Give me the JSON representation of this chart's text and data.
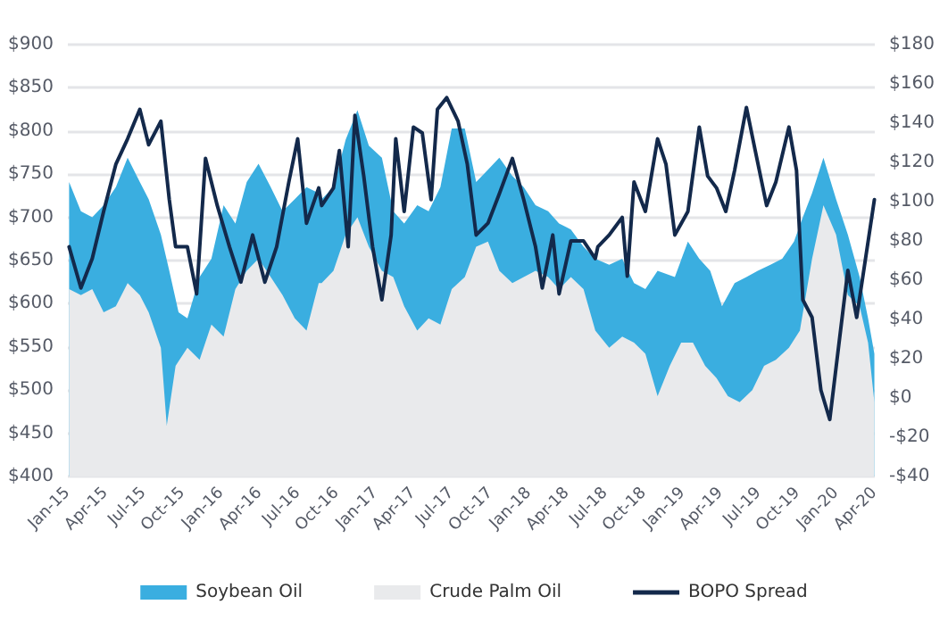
{
  "chart_data": {
    "type": "area",
    "xlim": [
      "2015-01",
      "2020-04"
    ],
    "xticks": [
      {
        "value": "2015-01",
        "label": "Jan-15"
      },
      {
        "value": "2015-04",
        "label": "Apr-15"
      },
      {
        "value": "2015-07",
        "label": "Jul-15"
      },
      {
        "value": "2015-10",
        "label": "Oct-15"
      },
      {
        "value": "2016-01",
        "label": "Jan-16"
      },
      {
        "value": "2016-04",
        "label": "Apr-16"
      },
      {
        "value": "2016-07",
        "label": "Jul-16"
      },
      {
        "value": "2016-10",
        "label": "Oct-16"
      },
      {
        "value": "2017-01",
        "label": "Jan-17"
      },
      {
        "value": "2017-04",
        "label": "Apr-17"
      },
      {
        "value": "2017-07",
        "label": "Jul-17"
      },
      {
        "value": "2017-10",
        "label": "Oct-17"
      },
      {
        "value": "2018-01",
        "label": "Jan-18"
      },
      {
        "value": "2018-04",
        "label": "Apr-18"
      },
      {
        "value": "2018-07",
        "label": "Jul-18"
      },
      {
        "value": "2018-10",
        "label": "Oct-18"
      },
      {
        "value": "2019-01",
        "label": "Jan-19"
      },
      {
        "value": "2019-04",
        "label": "Apr-19"
      },
      {
        "value": "2019-07",
        "label": "Jul-19"
      },
      {
        "value": "2019-10",
        "label": "Oct-19"
      },
      {
        "value": "2020-01",
        "label": "Jan-20"
      },
      {
        "value": "2020-04",
        "label": "Apr-20"
      }
    ],
    "ylim": [
      400,
      900
    ],
    "yticks": [
      {
        "value": 400,
        "label": "$400"
      },
      {
        "value": 450,
        "label": "$450"
      },
      {
        "value": 500,
        "label": "$500"
      },
      {
        "value": 550,
        "label": "$550"
      },
      {
        "value": 600,
        "label": "$600"
      },
      {
        "value": 650,
        "label": "$650"
      },
      {
        "value": 700,
        "label": "$700"
      },
      {
        "value": 750,
        "label": "$750"
      },
      {
        "value": 800,
        "label": "$800"
      },
      {
        "value": 850,
        "label": "$850"
      },
      {
        "value": 900,
        "label": "$900"
      }
    ],
    "y2lim": [
      -40,
      180
    ],
    "y2ticks": [
      {
        "value": -40,
        "label": "-$40"
      },
      {
        "value": -20,
        "label": "-$20"
      },
      {
        "value": 0,
        "label": "$0"
      },
      {
        "value": 20,
        "label": "$20"
      },
      {
        "value": 40,
        "label": "$40"
      },
      {
        "value": 60,
        "label": "$60"
      },
      {
        "value": 80,
        "label": "$80"
      },
      {
        "value": 100,
        "label": "$100"
      },
      {
        "value": 120,
        "label": "$120"
      },
      {
        "value": 140,
        "label": "$140"
      },
      {
        "value": 160,
        "label": "$160"
      },
      {
        "value": 180,
        "label": "$180"
      }
    ],
    "grid": "y",
    "legend": "bottom",
    "marker": "none",
    "series": [
      {
        "name": "Soybean Oil",
        "color": "#3aaee0",
        "x": [
          "2015-01-04",
          "2015-02-01",
          "2015-02-28",
          "2015-03-27",
          "2015-04-25",
          "2015-05-23",
          "2015-06-21",
          "2015-07-12",
          "2015-08-10",
          "2015-08-30",
          "2015-09-21",
          "2015-10-12",
          "2015-11-10",
          "2015-12-08",
          "2016-01-06",
          "2016-02-03",
          "2016-03-01",
          "2016-03-29",
          "2016-04-27",
          "2016-05-25",
          "2016-06-23",
          "2016-07-21",
          "2016-08-19",
          "2016-08-26",
          "2016-09-23",
          "2016-10-22",
          "2016-11-19",
          "2016-12-16",
          "2017-01-16",
          "2017-02-12",
          "2017-03-10",
          "2017-04-10",
          "2017-05-07",
          "2017-06-04",
          "2017-07-01",
          "2017-08-01",
          "2017-08-28",
          "2017-09-25",
          "2017-10-22",
          "2017-11-22",
          "2017-12-19",
          "2018-01-16",
          "2018-02-15",
          "2018-03-13",
          "2018-04-10",
          "2018-05-10",
          "2018-06-07",
          "2018-07-10",
          "2018-08-10",
          "2018-09-07",
          "2018-10-04",
          "2018-11-02",
          "2018-12-13",
          "2019-01-13",
          "2019-02-09",
          "2019-03-07",
          "2019-04-04",
          "2019-05-04",
          "2019-06-01",
          "2019-06-28",
          "2019-07-28",
          "2019-08-25",
          "2019-09-22",
          "2019-10-13",
          "2019-11-04",
          "2019-12-01",
          "2019-12-31",
          "2020-01-28",
          "2020-02-25",
          "2020-03-16",
          "2020-03-31"
        ],
        "values": [
          741,
          707,
          700,
          714,
          735,
          769,
          741,
          721,
          680,
          638,
          590,
          583,
          631,
          652,
          714,
          693,
          741,
          762,
          735,
          707,
          721,
          735,
          728,
          721,
          735,
          790,
          824,
          783,
          769,
          707,
          693,
          714,
          707,
          735,
          803,
          803,
          741,
          755,
          769,
          748,
          735,
          714,
          707,
          693,
          686,
          666,
          652,
          645,
          652,
          624,
          617,
          638,
          631,
          672,
          652,
          638,
          597,
          624,
          631,
          638,
          645,
          652,
          672,
          700,
          728,
          769,
          721,
          680,
          631,
          583,
          542
        ]
      },
      {
        "name": "Crude Palm Oil",
        "color": "#e9eaec",
        "x": [
          "2015-01-04",
          "2015-02-01",
          "2015-02-28",
          "2015-03-27",
          "2015-04-25",
          "2015-05-23",
          "2015-06-21",
          "2015-07-12",
          "2015-08-10",
          "2015-08-24",
          "2015-09-14",
          "2015-10-12",
          "2015-11-10",
          "2015-12-08",
          "2016-01-06",
          "2016-02-03",
          "2016-03-01",
          "2016-03-29",
          "2016-04-27",
          "2016-05-25",
          "2016-06-23",
          "2016-07-21",
          "2016-08-19",
          "2016-08-26",
          "2016-09-23",
          "2016-10-22",
          "2016-11-19",
          "2016-12-16",
          "2017-01-16",
          "2017-02-12",
          "2017-03-10",
          "2017-04-10",
          "2017-05-07",
          "2017-06-04",
          "2017-07-01",
          "2017-08-01",
          "2017-08-28",
          "2017-09-25",
          "2017-10-22",
          "2017-11-22",
          "2017-12-19",
          "2018-01-16",
          "2018-02-15",
          "2018-03-13",
          "2018-04-10",
          "2018-05-10",
          "2018-06-07",
          "2018-07-10",
          "2018-08-10",
          "2018-09-07",
          "2018-10-04",
          "2018-11-02",
          "2018-12-01",
          "2018-12-28",
          "2019-01-25",
          "2019-02-23",
          "2019-03-22",
          "2019-04-18",
          "2019-05-16",
          "2019-06-15",
          "2019-07-13",
          "2019-08-10",
          "2019-09-10",
          "2019-10-06",
          "2019-11-04",
          "2019-12-01",
          "2019-12-31",
          "2020-01-28",
          "2020-02-25",
          "2020-03-16",
          "2020-03-31"
        ],
        "values": [
          617,
          610,
          617,
          590,
          597,
          624,
          610,
          590,
          549,
          459,
          528,
          549,
          535,
          576,
          562,
          617,
          638,
          652,
          631,
          610,
          583,
          569,
          624,
          624,
          638,
          680,
          700,
          666,
          638,
          631,
          597,
          569,
          583,
          576,
          617,
          631,
          666,
          672,
          638,
          624,
          631,
          638,
          631,
          617,
          631,
          617,
          569,
          549,
          562,
          555,
          542,
          493,
          528,
          555,
          555,
          528,
          514,
          493,
          486,
          500,
          528,
          535,
          549,
          569,
          652,
          714,
          680,
          610,
          597,
          555,
          486
        ]
      },
      {
        "name": "BOPO Spread",
        "type": "line",
        "axis": "y2",
        "color": "#13294b",
        "line_style": "solid",
        "x": [
          "2015-01-04",
          "2015-02-01",
          "2015-02-28",
          "2015-03-27",
          "2015-04-25",
          "2015-05-23",
          "2015-06-21",
          "2015-07-12",
          "2015-08-10",
          "2015-08-30",
          "2015-09-14",
          "2015-10-12",
          "2015-11-03",
          "2015-11-24",
          "2015-12-22",
          "2016-01-20",
          "2016-02-16",
          "2016-03-15",
          "2016-04-13",
          "2016-05-11",
          "2016-06-09",
          "2016-06-30",
          "2016-07-21",
          "2016-08-19",
          "2016-08-26",
          "2016-09-23",
          "2016-10-07",
          "2016-10-28",
          "2016-11-13",
          "2016-12-04",
          "2016-12-25",
          "2017-01-16",
          "2017-02-07",
          "2017-02-18",
          "2017-03-10",
          "2017-04-01",
          "2017-04-22",
          "2017-05-13",
          "2017-05-28",
          "2017-06-19",
          "2017-07-16",
          "2017-08-07",
          "2017-08-28",
          "2017-09-25",
          "2017-10-22",
          "2017-11-22",
          "2017-12-19",
          "2018-01-16",
          "2018-02-01",
          "2018-02-26",
          "2018-03-13",
          "2018-04-10",
          "2018-05-10",
          "2018-06-07",
          "2018-06-13",
          "2018-07-10",
          "2018-08-10",
          "2018-08-22",
          "2018-09-07",
          "2018-10-04",
          "2018-11-02",
          "2018-11-22",
          "2018-12-13",
          "2019-01-13",
          "2019-02-09",
          "2019-03-01",
          "2019-03-22",
          "2019-04-13",
          "2019-05-04",
          "2019-06-01",
          "2019-06-22",
          "2019-07-19",
          "2019-08-10",
          "2019-09-10",
          "2019-09-28",
          "2019-10-13",
          "2019-11-04",
          "2019-11-25",
          "2019-12-16",
          "2020-01-07",
          "2020-01-28",
          "2020-02-18",
          "2020-03-10",
          "2020-03-31"
        ],
        "values": [
          77,
          56,
          71,
          95,
          119,
          132,
          147,
          129,
          141,
          101,
          77,
          77,
          53,
          122,
          98,
          77,
          59,
          83,
          59,
          77,
          110,
          132,
          89,
          107,
          98,
          107,
          126,
          77,
          144,
          113,
          77,
          50,
          83,
          132,
          95,
          138,
          135,
          101,
          147,
          153,
          141,
          119,
          83,
          89,
          104,
          122,
          101,
          77,
          56,
          83,
          53,
          80,
          80,
          71,
          77,
          83,
          92,
          62,
          110,
          95,
          132,
          119,
          83,
          95,
          138,
          113,
          107,
          95,
          116,
          148,
          126,
          98,
          110,
          138,
          116,
          50,
          41,
          4,
          -11,
          28,
          65,
          41,
          71,
          101
        ]
      }
    ]
  }
}
